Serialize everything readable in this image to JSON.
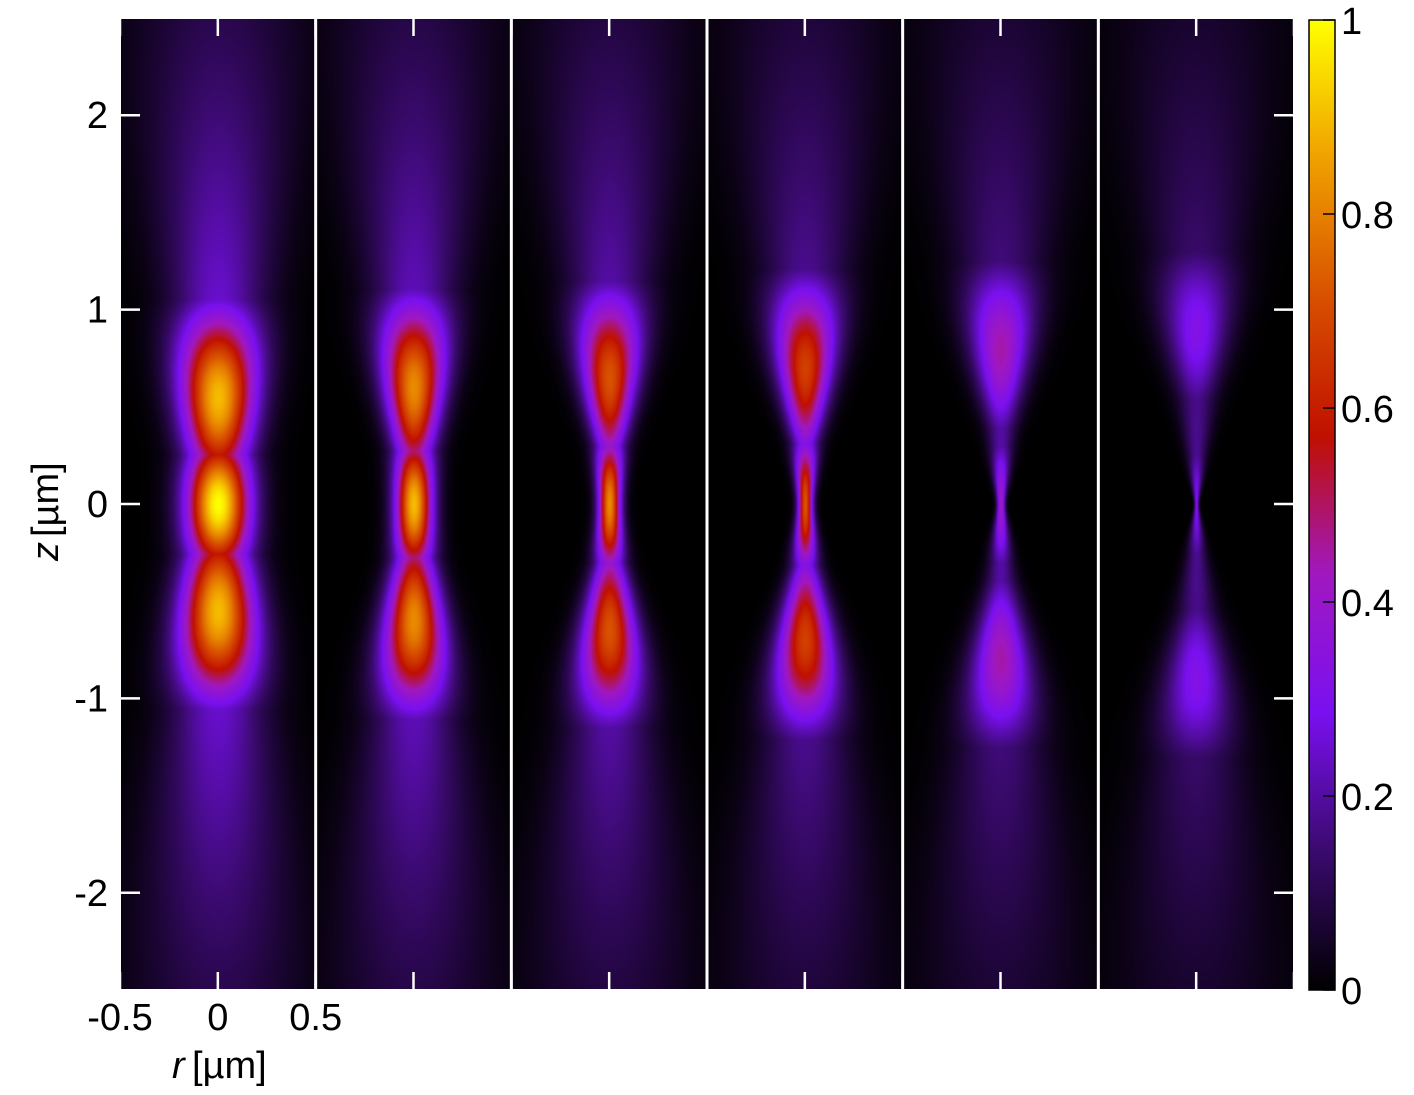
{
  "chart_data": {
    "type": "heatmap",
    "title": "",
    "xlabel": "r",
    "xlabel_unit": "[µm]",
    "ylabel": "z",
    "ylabel_unit": "[µm]",
    "panel_count": 6,
    "xlim": [
      -0.5,
      0.5
    ],
    "ylim": [
      -2.5,
      2.5
    ],
    "x_ticks": [
      -0.5,
      0,
      0.5
    ],
    "x_tick_labels": [
      "-0.5",
      "0",
      "0.5"
    ],
    "y_ticks": [
      -2,
      -1,
      0,
      1,
      2
    ],
    "y_tick_labels": [
      "-2",
      "-1",
      "0",
      "1",
      "2"
    ],
    "colorbar": {
      "range": [
        0,
        1
      ],
      "ticks": [
        0,
        0.2,
        0.4,
        0.6,
        0.8,
        1
      ],
      "tick_labels": [
        "0",
        "0.2",
        "0.4",
        "0.6",
        "0.8",
        "1"
      ],
      "colormap": [
        "#000000",
        "#3a0a6e",
        "#7a10f0",
        "#a018c0",
        "#c01000",
        "#d85000",
        "#f0a000",
        "#ffff00"
      ]
    },
    "panels": [
      {
        "peak": 1.0,
        "center_width": 0.12,
        "lobe_z": 0.55,
        "lobe_peak": 0.9,
        "lobe_width": 0.1,
        "z_extent": 1.25
      },
      {
        "peak": 0.9,
        "center_width": 0.06,
        "lobe_z": 0.6,
        "lobe_peak": 0.82,
        "lobe_width": 0.1,
        "z_extent": 1.3
      },
      {
        "peak": 0.82,
        "center_width": 0.03,
        "lobe_z": 0.65,
        "lobe_peak": 0.72,
        "lobe_width": 0.085,
        "z_extent": 1.3
      },
      {
        "peak": 0.72,
        "center_width": 0.018,
        "lobe_z": 0.7,
        "lobe_peak": 0.68,
        "lobe_width": 0.07,
        "z_extent": 1.3
      },
      {
        "peak": 0.42,
        "center_width": 0.008,
        "lobe_z": 0.8,
        "lobe_peak": 0.45,
        "lobe_width": 0.045,
        "z_extent": 1.35
      },
      {
        "peak": 0.3,
        "center_width": 0.005,
        "lobe_z": 0.9,
        "lobe_peak": 0.32,
        "lobe_width": 0.03,
        "z_extent": 1.4
      }
    ]
  }
}
